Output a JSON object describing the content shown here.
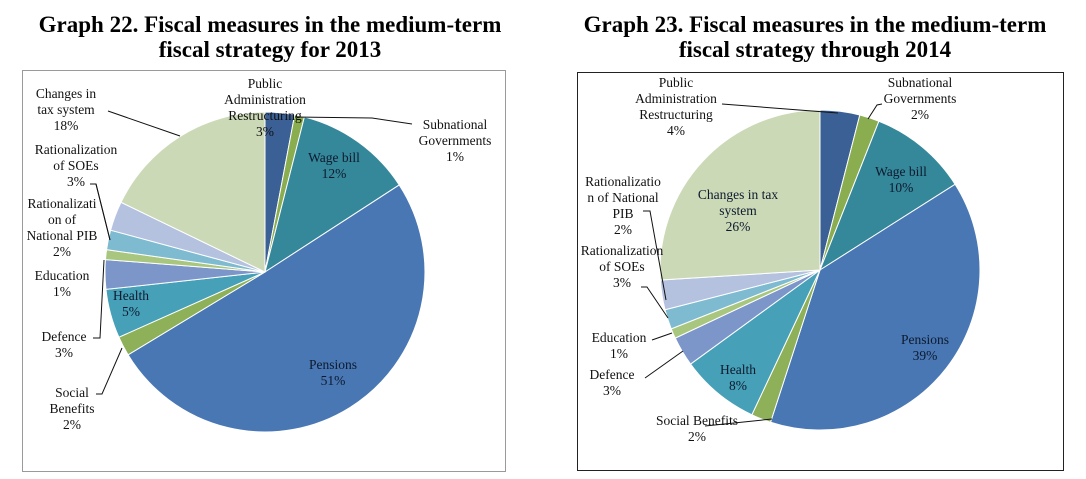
{
  "chart_data": [
    {
      "type": "pie",
      "title": "Graph 22. Fiscal measures in the medium-term fiscal strategy for 2013",
      "title_lines": [
        "Graph 22. Fiscal measures in the medium-term",
        "fiscal strategy for 2013"
      ],
      "start_angle_deg": 0,
      "direction": "clockwise",
      "slices": [
        {
          "label": "Public Administration Restructuring",
          "value": 3,
          "pct": "3%",
          "color": "#3B6096"
        },
        {
          "label": "Subnational Governments",
          "value": 1,
          "pct": "1%",
          "color": "#89AD4F"
        },
        {
          "label": "Wage bill",
          "value": 12,
          "pct": "12%",
          "color": "#35879A"
        },
        {
          "label": "Pensions",
          "value": 51,
          "pct": "51%",
          "color": "#4877B3"
        },
        {
          "label": "Social Benefits",
          "value": 2,
          "pct": "2%",
          "color": "#8DB058"
        },
        {
          "label": "Health",
          "value": 5,
          "pct": "5%",
          "color": "#46A0B7"
        },
        {
          "label": "Defence",
          "value": 3,
          "pct": "3%",
          "color": "#7C96C9"
        },
        {
          "label": "Education",
          "value": 1,
          "pct": "1%",
          "color": "#A9C67F"
        },
        {
          "label": "Rationalization of National PIB",
          "value": 2,
          "pct": "2%",
          "color": "#7EBBD1"
        },
        {
          "label": "Rationalization of SOEs",
          "value": 3,
          "pct": "3%",
          "color": "#B5C2DF"
        },
        {
          "label": "Changes in tax system",
          "value": 18,
          "pct": "18%",
          "color": "#CBD9B7"
        }
      ],
      "label_text": [
        [
          "Public",
          "Administration",
          "Restructuring",
          "3%"
        ],
        [
          "Subnational",
          "Governments",
          "1%"
        ],
        [
          "Wage bill",
          "12%"
        ],
        [
          "Pensions",
          "51%"
        ],
        [
          "Social",
          "Benefits",
          "2%"
        ],
        [
          "Health",
          "5%"
        ],
        [
          "Defence",
          "3%"
        ],
        [
          "Education",
          "1%"
        ],
        [
          "Rationalizati",
          "on of",
          "National PIB",
          "2%"
        ],
        [
          "Rationalization",
          "of SOEs",
          "3%"
        ],
        [
          "Changes in",
          "tax system",
          "18%"
        ]
      ]
    },
    {
      "type": "pie",
      "title": "Graph 23. Fiscal measures in the medium-term fiscal strategy through 2014",
      "title_lines": [
        "Graph 23. Fiscal measures in the medium-term",
        "fiscal strategy through 2014"
      ],
      "start_angle_deg": 0,
      "direction": "clockwise",
      "slices": [
        {
          "label": "Public Administration Restructuring",
          "value": 4,
          "pct": "4%",
          "color": "#3B6096"
        },
        {
          "label": "Subnational Governments",
          "value": 2,
          "pct": "2%",
          "color": "#89AD4F"
        },
        {
          "label": "Wage bill",
          "value": 10,
          "pct": "10%",
          "color": "#35879A"
        },
        {
          "label": "Pensions",
          "value": 39,
          "pct": "39%",
          "color": "#4877B3"
        },
        {
          "label": "Social Benefits",
          "value": 2,
          "pct": "2%",
          "color": "#8DB058"
        },
        {
          "label": "Health",
          "value": 8,
          "pct": "8%",
          "color": "#46A0B7"
        },
        {
          "label": "Defence",
          "value": 3,
          "pct": "3%",
          "color": "#7C96C9"
        },
        {
          "label": "Education",
          "value": 1,
          "pct": "1%",
          "color": "#A9C67F"
        },
        {
          "label": "Rationalization of National PIB",
          "value": 2,
          "pct": "2%",
          "color": "#7EBBD1"
        },
        {
          "label": "Rationalization of SOEs",
          "value": 3,
          "pct": "3%",
          "color": "#B5C2DF"
        },
        {
          "label": "Changes in tax system",
          "value": 26,
          "pct": "26%",
          "color": "#CBD9B7"
        }
      ],
      "label_text": [
        [
          "Public",
          "Administration",
          "Restructuring",
          "4%"
        ],
        [
          "Subnational",
          "Governments",
          "2%"
        ],
        [
          "Wage bill",
          "10%"
        ],
        [
          "Pensions",
          "39%"
        ],
        [
          "Social Benefits",
          "2%"
        ],
        [
          "Health",
          "8%"
        ],
        [
          "Defence",
          "3%"
        ],
        [
          "Education",
          "1%"
        ],
        [
          "Rationalizatio",
          "n of National",
          "PIB",
          "2%"
        ],
        [
          "Rationalization",
          "of SOEs",
          "3%"
        ],
        [
          "Changes in tax",
          "system",
          "26%"
        ]
      ]
    }
  ]
}
